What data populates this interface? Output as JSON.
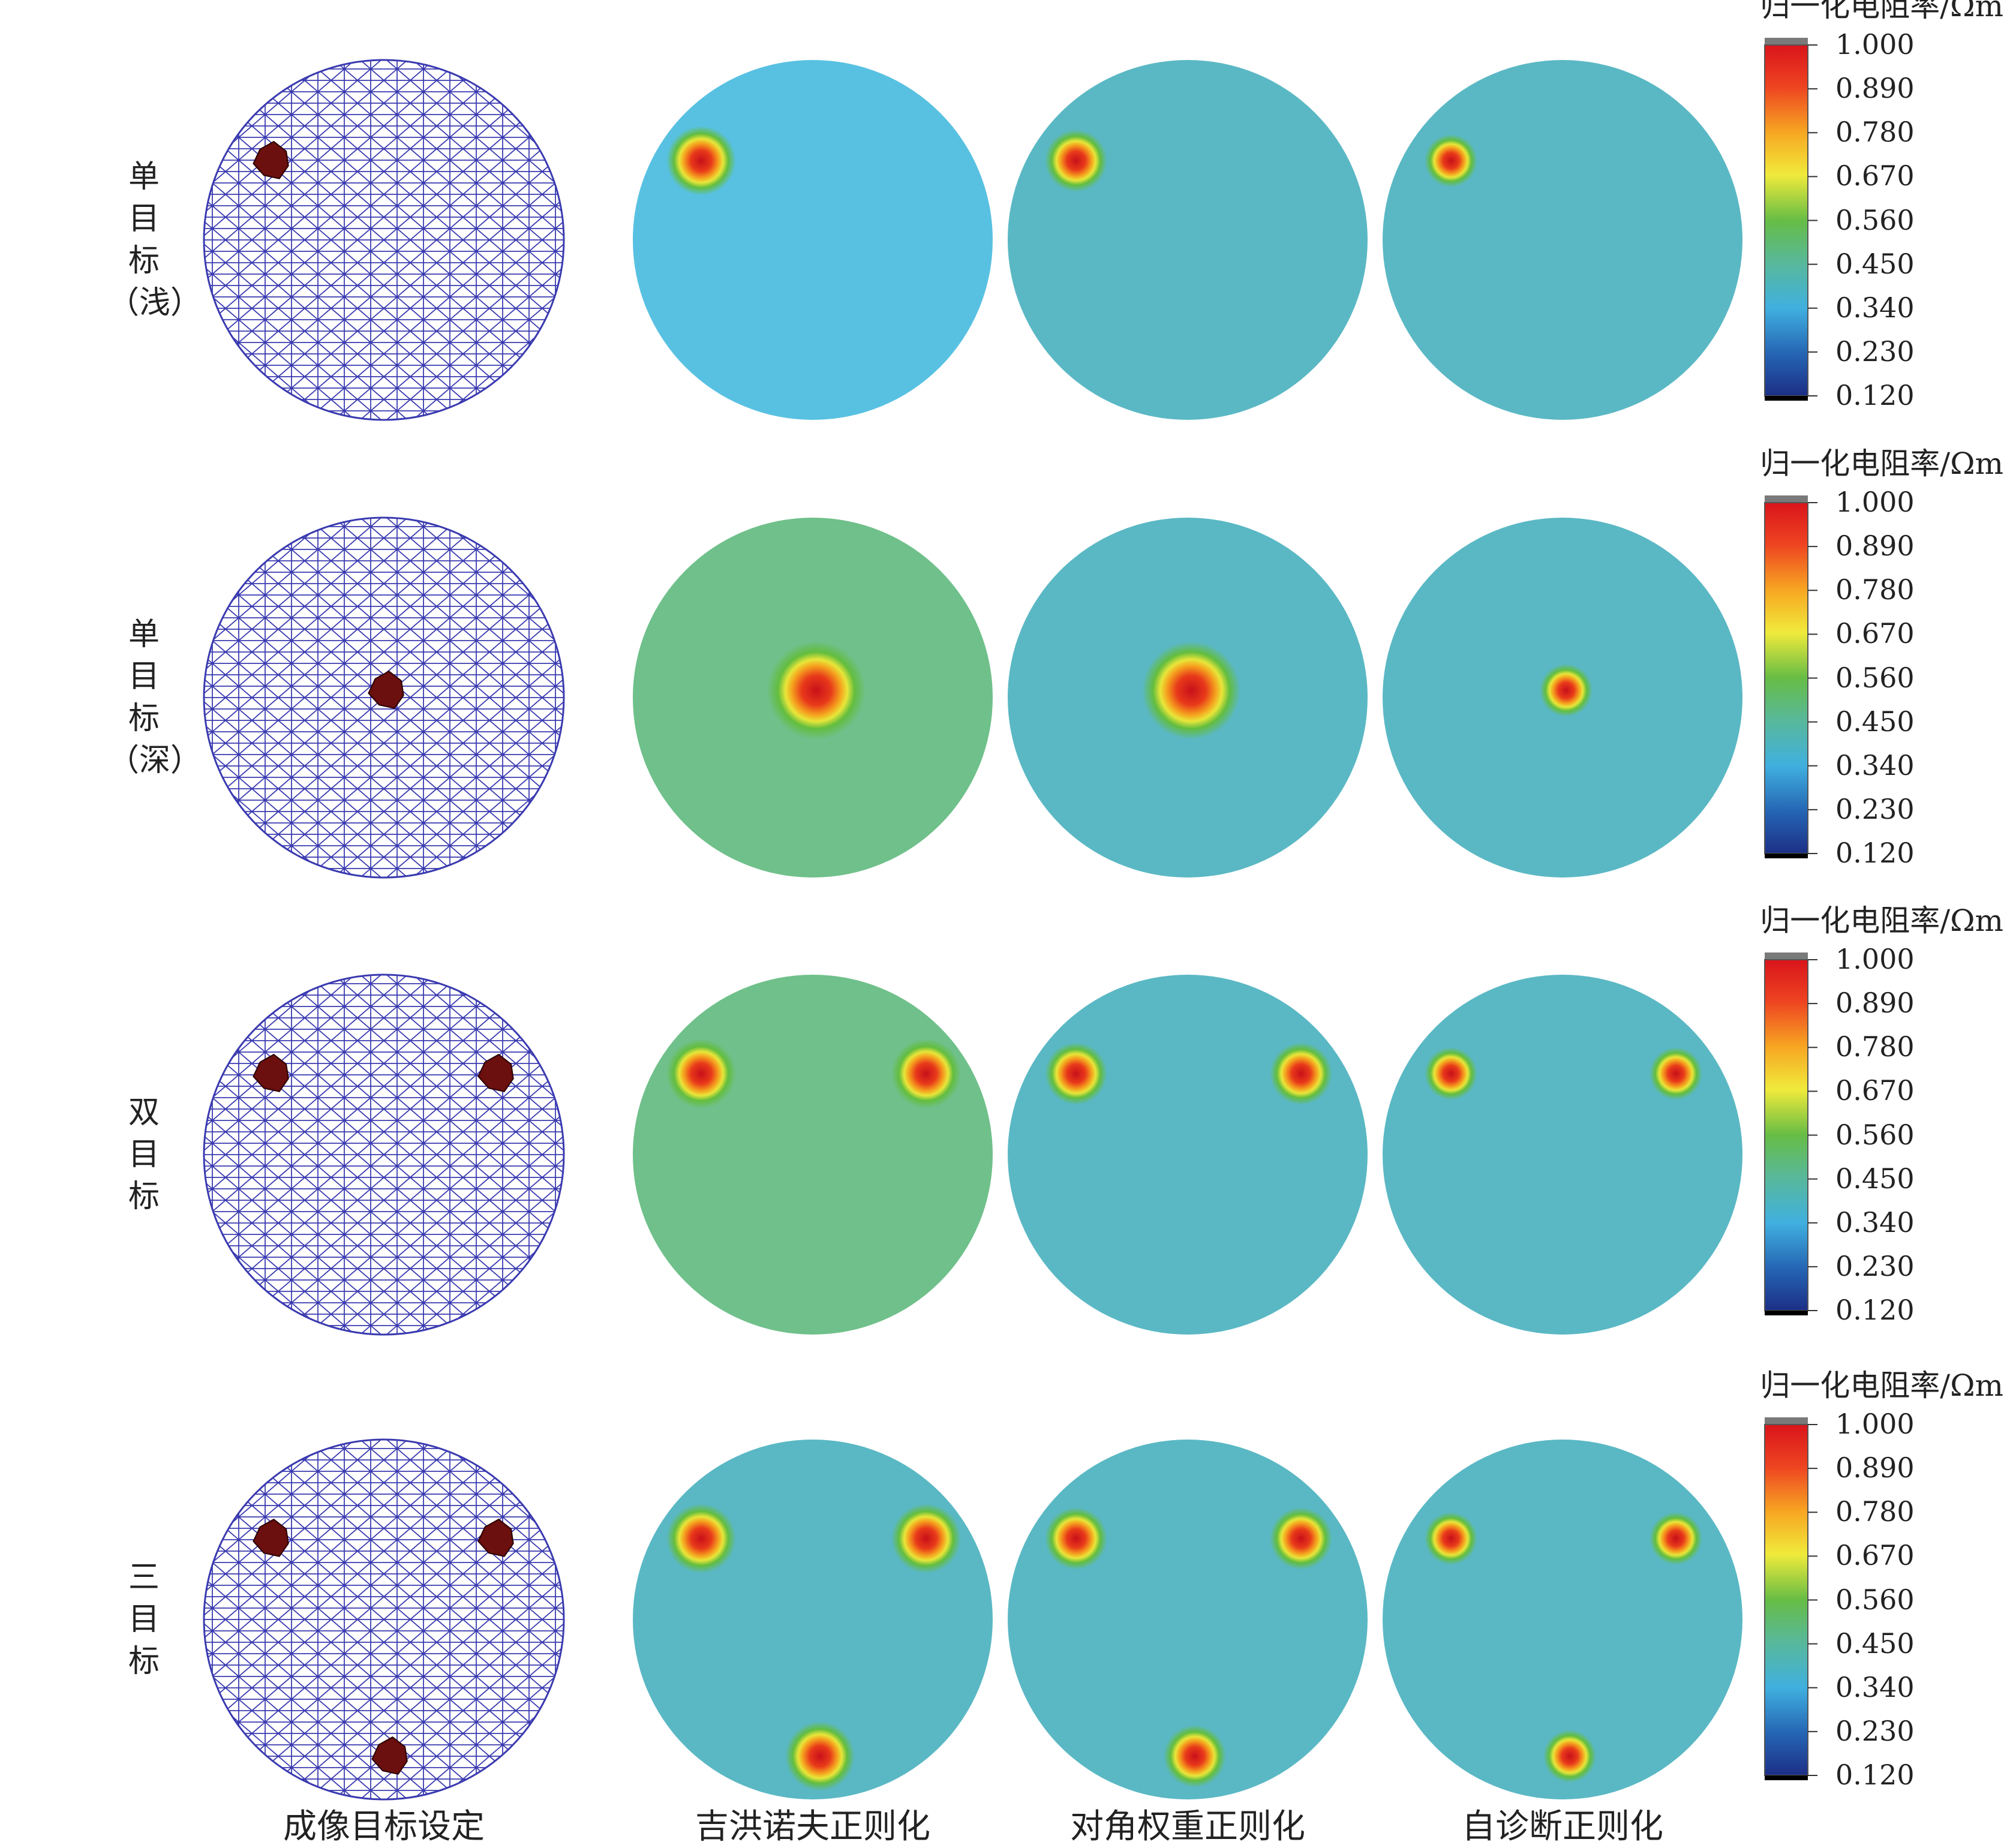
{
  "figure": {
    "columns": [
      "成像目标设定",
      "吉洪诺夫正则化",
      "对角权重正则化",
      "自诊断正则化"
    ],
    "rows": [
      {
        "label": "单\n目\n标\n（浅）",
        "targets": [
          [
            -0.62,
            0.44
          ]
        ]
      },
      {
        "label": "单\n目\n标\n（深）",
        "targets": [
          [
            0.02,
            0.04
          ]
        ]
      },
      {
        "label": "双\n目\n标",
        "targets": [
          [
            -0.62,
            0.45
          ],
          [
            0.63,
            0.45
          ]
        ]
      },
      {
        "label": "三\n目\n标",
        "targets": [
          [
            -0.62,
            0.45
          ],
          [
            0.63,
            0.45
          ],
          [
            0.04,
            -0.76
          ]
        ]
      }
    ],
    "colorbar": {
      "title": "归一化电阻率/Ωm",
      "ticks": [
        "1.000",
        "0.890",
        "0.780",
        "0.670",
        "0.560",
        "0.450",
        "0.340",
        "0.230",
        "0.120"
      ]
    },
    "colors": {
      "mesh": "#3a3ab0",
      "target": "#6b0f0f",
      "background_tikhonov_row1": "#58c1e2",
      "background_other": "#5ab8c4"
    }
  }
}
